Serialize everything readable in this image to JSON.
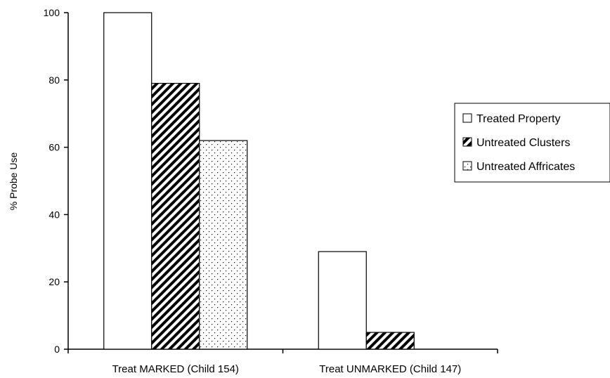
{
  "chart_data": {
    "type": "bar",
    "categories": [
      "Treat MARKED (Child 154)",
      "Treat UNMARKED (Child 147)"
    ],
    "series": [
      {
        "name": "Treated Property",
        "values": [
          100,
          29
        ],
        "pattern": "none"
      },
      {
        "name": "Untreated Clusters",
        "values": [
          79,
          5
        ],
        "pattern": "diagonal-hatch"
      },
      {
        "name": "Untreated Affricates",
        "values": [
          62,
          0
        ],
        "pattern": "dots"
      }
    ],
    "title": "",
    "xlabel": "",
    "ylabel": "% Probe Use",
    "ylim": [
      0,
      100
    ],
    "yticks": [
      "0",
      "20",
      "40",
      "60",
      "80",
      "100"
    ],
    "grid": false,
    "legend_position": "right",
    "colors": {
      "bar_fill": "#ffffff",
      "stroke": "#000000",
      "pattern": "#000000"
    }
  }
}
